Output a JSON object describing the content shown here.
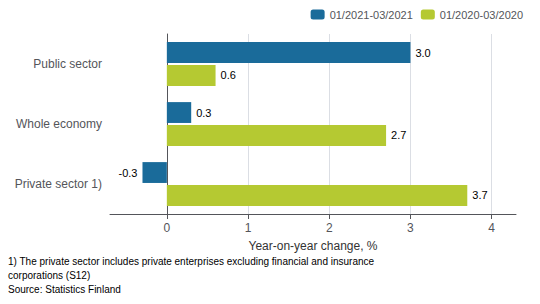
{
  "chart_data": {
    "type": "bar",
    "orientation": "horizontal",
    "categories": [
      "Private sector 1)",
      "Whole economy",
      "Public sector"
    ],
    "series": [
      {
        "name": "01/2021-03/2021",
        "color": "#1a6b9a",
        "values": [
          -0.3,
          0.3,
          3.0
        ],
        "value_labels": [
          "-0.3",
          "0.3",
          "3.0"
        ]
      },
      {
        "name": "01/2020-03/2020",
        "color": "#b5c932",
        "values": [
          3.7,
          2.7,
          0.6
        ],
        "value_labels": [
          "3.7",
          "2.7",
          "0.6"
        ]
      }
    ],
    "xlabel": "Year-on-year change, %",
    "xlim": [
      -0.7,
      4.3
    ],
    "xticks": [
      0,
      1,
      2,
      3,
      4
    ],
    "grid": true,
    "data_labels": true,
    "legend": "upper right",
    "annotations": [
      "1) The private sector includes private enterprises excluding financial and insurance",
      "corporations (S12)",
      "Source: Statistics Finland"
    ]
  }
}
